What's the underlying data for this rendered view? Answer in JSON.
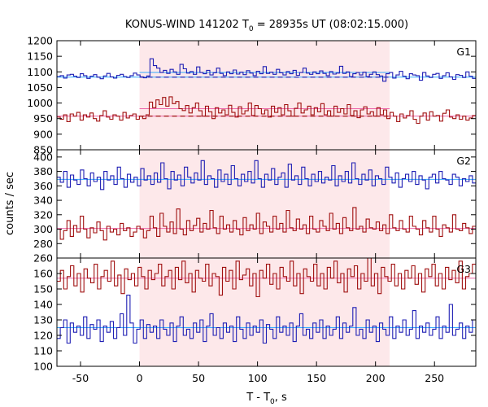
{
  "chart_data": {
    "type": "line",
    "title_main": "KONUS-WIND 141202 T",
    "title_sub": "0",
    "title_rest": " = 28935s UT (08:02:15.000)",
    "xlabel_main": "T - T",
    "xlabel_sub": "0",
    "xlabel_rest": ", s",
    "ylabel": "counts / sec",
    "xlim": [
      -70,
      285
    ],
    "xticks": [
      -50,
      0,
      50,
      100,
      150,
      200,
      250
    ],
    "highlight": [
      0,
      212
    ],
    "colors": {
      "highlight": "#fde8ea",
      "blue": "#1f1fb4",
      "red": "#a01010",
      "blue_fit": "#33aaff",
      "red_fit": "#ee66aa",
      "bg_line": "#a01010"
    },
    "panels": [
      {
        "label": "G1",
        "ylim": [
          850,
          1200
        ],
        "yticks": [
          850,
          900,
          950,
          1000,
          1050,
          1100,
          1150,
          1200
        ],
        "series": [
          {
            "color": "blue",
            "bg": 1083,
            "peak": 1098,
            "values": [
              1085,
              1088,
              1080,
              1090,
              1092,
              1086,
              1082,
              1094,
              1088,
              1079,
              1086,
              1091,
              1083,
              1078,
              1087,
              1095,
              1084,
              1080,
              1089,
              1092,
              1085,
              1082,
              1088,
              1096,
              1090,
              1084,
              1081,
              1087,
              1142,
              1120,
              1112,
              1098,
              1105,
              1095,
              1108,
              1100,
              1092,
              1124,
              1110,
              1096,
              1101,
              1092,
              1116,
              1098,
              1094,
              1105,
              1090,
              1097,
              1112,
              1095,
              1088,
              1100,
              1094,
              1106,
              1093,
              1099,
              1091,
              1104,
              1096,
              1088,
              1102,
              1094,
              1117,
              1095,
              1099,
              1092,
              1108,
              1097,
              1090,
              1101,
              1094,
              1105,
              1089,
              1098,
              1112,
              1096,
              1092,
              1100,
              1094,
              1103,
              1095,
              1088,
              1101,
              1093,
              1096,
              1118,
              1095,
              1100,
              1085,
              1094,
              1098,
              1090,
              1099,
              1085,
              1092,
              1100,
              1091,
              1087,
              1070,
              1094,
              1098,
              1080,
              1090,
              1102,
              1086,
              1078,
              1094,
              1090,
              1088,
              1073,
              1098,
              1087,
              1082,
              1092,
              1095,
              1079,
              1088,
              1097,
              1084,
              1076,
              1091,
              1089,
              1082,
              1100,
              1086,
              1079
            ]
          },
          {
            "color": "red",
            "bg": 958,
            "peak": 982,
            "values": [
              955,
              948,
              962,
              940,
              965,
              958,
              970,
              945,
              962,
              955,
              968,
              950,
              942,
              960,
              975,
              955,
              948,
              962,
              958,
              945,
              970,
              952,
              960,
              965,
              948,
              958,
              950,
              962,
              1003,
              985,
              1010,
              995,
              1018,
              990,
              1020,
              998,
              1005,
              982,
              976,
              992,
              968,
              985,
              1000,
              975,
              958,
              990,
              972,
              950,
              985,
              968,
              978,
              962,
              993,
              970,
              955,
              988,
              965,
              975,
              1000,
              960,
              992,
              982,
              965,
              978,
              955,
              990,
              970,
              985,
              962,
              995,
              975,
              958,
              983,
              1000,
              968,
              978,
              990,
              962,
              985,
              972,
              998,
              962,
              975,
              958,
              990,
              970,
              982,
              965,
              995,
              960,
              975,
              953,
              978,
              988,
              965,
              972,
              958,
              985,
              962,
              978,
              950,
              970,
              958,
              940,
              965,
              952,
              960,
              975,
              948,
              935,
              958,
              968,
              945,
              972,
              958,
              960,
              942,
              967,
              978,
              955,
              950,
              962,
              948,
              958,
              945,
              952,
              960
            ]
          }
        ]
      },
      {
        "label": "G2",
        "ylim": [
          260,
          410
        ],
        "yticks": [
          260,
          280,
          300,
          320,
          340,
          360,
          380,
          400
        ],
        "series": [
          {
            "color": "blue",
            "fit": 369,
            "values": [
              372,
              365,
              380,
              358,
              375,
              368,
              362,
              382,
              370,
              360,
              378,
              366,
              372,
              355,
              380,
              368,
              374,
              362,
              386,
              370,
              358,
              376,
              365,
              372,
              360,
              384,
              368,
              374,
              362,
              378,
              365,
              392,
              370,
              356,
              380,
              368,
              375,
              360,
              386,
              372,
              364,
              378,
              368,
              395,
              362,
              374,
              370,
              358,
              382,
              366,
              376,
              362,
              388,
              370,
              360,
              376,
              366,
              380,
              364,
              395,
              370,
              358,
              376,
              368,
              384,
              362,
              372,
              378,
              358,
              390,
              368,
              374,
              362,
              386,
              370,
              360,
              376,
              366,
              380,
              364,
              372,
              368,
              388,
              360,
              374,
              366,
              380,
              364,
              392,
              370,
              362,
              376,
              368,
              382,
              360,
              374,
              370,
              362,
              386,
              372,
              364,
              378,
              358,
              370,
              376,
              366,
              380,
              362,
              374,
              368,
              356,
              372,
              376,
              364,
              380,
              370,
              368,
              362,
              376,
              372,
              360,
              370,
              366,
              374,
              364
            ]
          },
          {
            "color": "red",
            "fit": 301,
            "values": [
              300,
              286,
              298,
              312,
              290,
              305,
              296,
              318,
              300,
              288,
              302,
              295,
              310,
              298,
              285,
              304,
              296,
              300,
              292,
              308,
              298,
              302,
              290,
              296,
              304,
              300,
              288,
              298,
              318,
              302,
              290,
              322,
              304,
              296,
              310,
              294,
              328,
              300,
              292,
              312,
              298,
              305,
              315,
              296,
              308,
              300,
              326,
              302,
              294,
              318,
              300,
              306,
              296,
              312,
              300,
              292,
              316,
              298,
              306,
              300,
              322,
              294,
              310,
              304,
              296,
              318,
              300,
              308,
              296,
              326,
              302,
              298,
              314,
              300,
              306,
              294,
              318,
              300,
              296,
              312,
              304,
              298,
              322,
              300,
              308,
              294,
              316,
              302,
              298,
              330,
              300,
              304,
              296,
              314,
              302,
              300,
              310,
              298,
              306,
              294,
              320,
              302,
              298,
              312,
              300,
              296,
              318,
              304,
              300,
              292,
              312,
              302,
              296,
              318,
              300,
              290,
              306,
              302,
              296,
              320,
              300,
              298,
              308,
              302,
              294,
              304
            ]
          }
        ]
      },
      {
        "label": "G3",
        "ylim": [
          100,
          170
        ],
        "yticks": [
          100,
          110,
          120,
          130,
          140,
          150,
          160
        ],
        "series": [
          {
            "color": "red",
            "fit": 157,
            "values": [
              155,
              162,
              150,
              158,
              165,
              152,
              160,
              148,
              163,
              157,
              154,
              166,
              150,
              158,
              162,
              155,
              168,
              152,
              159,
              147,
              163,
              156,
              160,
              152,
              164,
              158,
              150,
              162,
              156,
              160,
              166,
              152,
              158,
              162,
              150,
              164,
              156,
              168,
              154,
              160,
              148,
              162,
              157,
              155,
              166,
              152,
              160,
              158,
              146,
              164,
              155,
              162,
              150,
              168,
              156,
              159,
              163,
              152,
              160,
              145,
              162,
              157,
              166,
              153,
              160,
              150,
              164,
              158,
              155,
              168,
              152,
              160,
              147,
              163,
              158,
              155,
              166,
              152,
              160,
              150,
              164,
              157,
              168,
              154,
              160,
              148,
              163,
              158,
              165,
              150,
              160,
              155,
              170,
              152,
              160,
              147,
              164,
              158,
              155,
              166,
              152,
              160,
              150,
              162,
              157,
              165,
              153,
              160,
              148,
              163,
              158,
              166,
              152,
              160,
              150,
              164,
              156,
              162,
              154,
              168,
              150,
              158,
              160,
              166
            ]
          },
          {
            "color": "blue",
            "fit": 125,
            "values": [
              118,
              125,
              130,
              115,
              128,
              122,
              126,
              120,
              132,
              118,
              127,
              124,
              130,
              116,
              126,
              122,
              129,
              118,
              125,
              134,
              120,
              146,
              128,
              115,
              124,
              130,
              118,
              127,
              122,
              126,
              118,
              130,
              124,
              120,
              128,
              116,
              126,
              132,
              120,
              124,
              118,
              128,
              122,
              130,
              116,
              126,
              134,
              120,
              125,
              118,
              128,
              122,
              126,
              116,
              132,
              124,
              118,
              128,
              120,
              126,
              122,
              130,
              115,
              127,
              124,
              118,
              132,
              122,
              126,
              120,
              128,
              116,
              126,
              134,
              120,
              124,
              118,
              128,
              122,
              130,
              118,
              126,
              120,
              124,
              132,
              118,
              128,
              122,
              126,
              138,
              120,
              124,
              118,
              130,
              122,
              126,
              116,
              128,
              124,
              120,
              132,
              118,
              126,
              122,
              130,
              120,
              124,
              136,
              118,
              126,
              122,
              128,
              120,
              124,
              132,
              118,
              126,
              122,
              140,
              120,
              124,
              128,
              118,
              126,
              122,
              130
            ]
          }
        ]
      }
    ]
  }
}
